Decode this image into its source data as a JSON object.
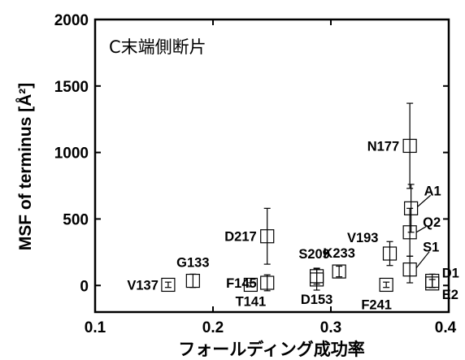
{
  "chart_data": {
    "type": "scatter",
    "panel_label": "C末端側断片",
    "xlabel": "フォールディング成功率",
    "ylabel": "MSF of terminus [Å²]",
    "xlim": [
      0.1,
      0.4
    ],
    "ylim": [
      -200,
      2000
    ],
    "x_ticks": [
      "0.1",
      "0.2",
      "0.3",
      "0.4"
    ],
    "y_ticks": [
      "0",
      "500",
      "1000",
      "1500",
      "2000"
    ],
    "grid": false,
    "points": [
      {
        "label": "V137",
        "x": 0.162,
        "y": 5,
        "err": 20
      },
      {
        "label": "G133",
        "x": 0.183,
        "y": 35,
        "err": 50
      },
      {
        "label": "T141",
        "x": 0.232,
        "y": 5,
        "err": 15
      },
      {
        "label": "F145",
        "x": 0.246,
        "y": 20,
        "err": 60
      },
      {
        "label": "D217",
        "x": 0.246,
        "y": 370,
        "err": 210
      },
      {
        "label": "D153",
        "x": 0.288,
        "y": 45,
        "err": 80
      },
      {
        "label": "S209",
        "x": 0.288,
        "y": 70,
        "err": 60
      },
      {
        "label": "K233",
        "x": 0.307,
        "y": 105,
        "err": 40
      },
      {
        "label": "F241",
        "x": 0.347,
        "y": 5,
        "err": 20
      },
      {
        "label": "V193",
        "x": 0.35,
        "y": 240,
        "err": 90
      },
      {
        "label": "N177",
        "x": 0.367,
        "y": 1050,
        "err": 320
      },
      {
        "label": "A1",
        "x": 0.368,
        "y": 580,
        "err": 180
      },
      {
        "label": "Q2",
        "x": 0.367,
        "y": 400,
        "err": 180
      },
      {
        "label": "S1",
        "x": 0.367,
        "y": 120,
        "err": 100
      },
      {
        "label": "D1",
        "x": 0.386,
        "y": 35,
        "err": 50
      },
      {
        "label": "E2",
        "x": 0.386,
        "y": 15,
        "err": 30
      }
    ]
  }
}
